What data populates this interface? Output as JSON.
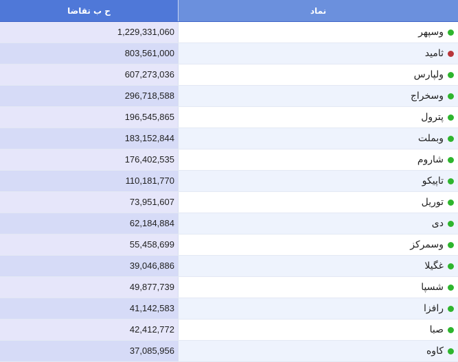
{
  "table": {
    "headers": {
      "value": "ح ب تقاضا",
      "symbol": "نماد"
    },
    "colors": {
      "green_dot": "#2eb52e",
      "red_dot": "#b8363c"
    },
    "rows": [
      {
        "symbol": "وسپهر",
        "value": "1,229,331,060",
        "status": "green"
      },
      {
        "symbol": "ثامید",
        "value": "803,561,000",
        "status": "red"
      },
      {
        "symbol": "ولپارس",
        "value": "607,273,036",
        "status": "green"
      },
      {
        "symbol": "وسخراج",
        "value": "296,718,588",
        "status": "green"
      },
      {
        "symbol": "پترول",
        "value": "196,545,865",
        "status": "green"
      },
      {
        "symbol": "وبملت",
        "value": "183,152,844",
        "status": "green"
      },
      {
        "symbol": "شاروم",
        "value": "176,402,535",
        "status": "green"
      },
      {
        "symbol": "تاپیکو",
        "value": "110,181,770",
        "status": "green"
      },
      {
        "symbol": "توریل",
        "value": "73,951,607",
        "status": "green"
      },
      {
        "symbol": "دی",
        "value": "62,184,884",
        "status": "green"
      },
      {
        "symbol": "وسمرکز",
        "value": "55,458,699",
        "status": "green"
      },
      {
        "symbol": "غگیلا",
        "value": "39,046,886",
        "status": "green"
      },
      {
        "symbol": "شسپا",
        "value": "49,877,739",
        "status": "green"
      },
      {
        "symbol": "رافزا",
        "value": "41,142,583",
        "status": "green"
      },
      {
        "symbol": "صبا",
        "value": "42,412,772",
        "status": "green"
      },
      {
        "symbol": "کاوه",
        "value": "37,085,956",
        "status": "green"
      }
    ]
  }
}
